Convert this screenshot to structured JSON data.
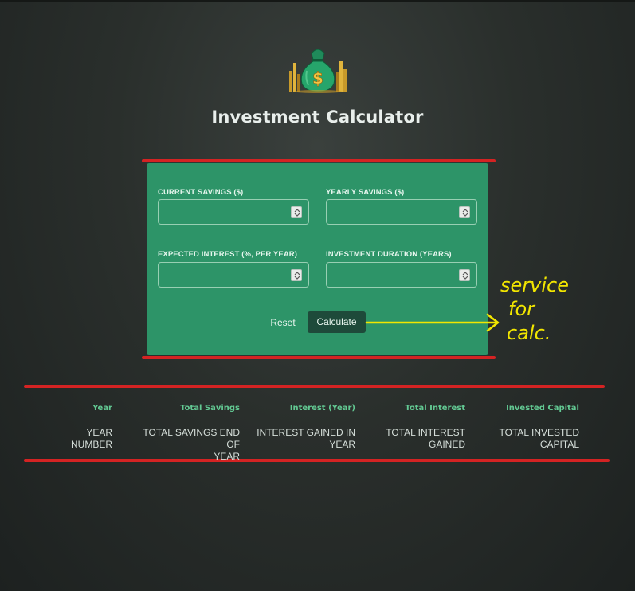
{
  "app": {
    "title": "Investment Calculator",
    "logo_icon": "money-bag-icon"
  },
  "form": {
    "fields": [
      {
        "label": "CURRENT SAVINGS ($)",
        "value": "",
        "placeholder": ""
      },
      {
        "label": "YEARLY SAVINGS ($)",
        "value": "",
        "placeholder": ""
      },
      {
        "label": "EXPECTED INTEREST (%, PER YEAR)",
        "value": "",
        "placeholder": ""
      },
      {
        "label": "INVESTMENT DURATION (YEARS)",
        "value": "",
        "placeholder": ""
      }
    ],
    "reset_label": "Reset",
    "calculate_label": "Calculate"
  },
  "table": {
    "headers": [
      "Year",
      "Total Savings",
      "Interest (Year)",
      "Total Interest",
      "Invested Capital"
    ],
    "row": [
      [
        "YEAR",
        "NUMBER"
      ],
      [
        "TOTAL SAVINGS END OF",
        "YEAR"
      ],
      [
        "INTEREST GAINED IN",
        "YEAR"
      ],
      [
        "TOTAL INTEREST",
        "GAINED"
      ],
      [
        "TOTAL INVESTED",
        "CAPITAL"
      ]
    ]
  },
  "annotation": {
    "text_lines": [
      "service",
      "for",
      "calc."
    ]
  },
  "colors": {
    "background": "#2a2f2c",
    "card": "#2d9468",
    "button_dark": "#1e4a3a",
    "header_green": "#62c892",
    "highlight_red": "#d42323",
    "annotation_yellow": "#f2e600"
  }
}
